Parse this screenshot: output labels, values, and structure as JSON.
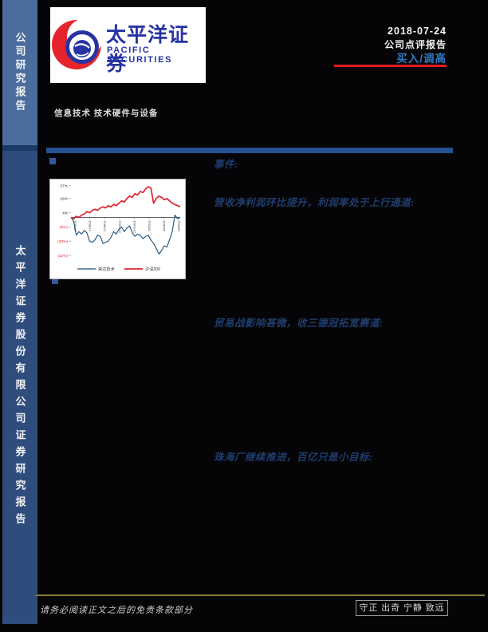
{
  "sidebar": {
    "top_label": "公司研究报告",
    "bottom_label": "太平洋证券股份有限公司证券研究报告",
    "top_bg": "#4a6d9d",
    "bottom_bg": "#2e4d7d"
  },
  "logo": {
    "cn": "太平洋证券",
    "en": "PACIFIC SECURITIES",
    "red": "#e5242c",
    "blue": "#2733a3"
  },
  "header": {
    "date": "2018-07-24",
    "report_type": "公司点评报告",
    "rating": "买入/调高",
    "rating_color": "#2e7bc4",
    "rule_color": "#e11b22"
  },
  "sector_line": "信息技术 技术硬件与设备",
  "headings": {
    "event": "事件:",
    "h1": "营收净利润环比提升，利润率处于上行通道:",
    "h2": "贸易战影响甚微，收三德冠拓宽赛道:",
    "h3": "珠海厂继续推进，百亿只是小目标:"
  },
  "chart_data": {
    "type": "line",
    "title": "",
    "xlabel": "",
    "ylabel": "",
    "ylim": [
      -38,
      32
    ],
    "grid": false,
    "legend_position": "bottom",
    "y_tick_labels": [
      "27%",
      "16%",
      "4%",
      "(8%)",
      "(20%)",
      "(32%)"
    ],
    "y_tick_values": [
      27,
      16,
      4,
      -8,
      -20,
      -32
    ],
    "x_tick_labels": [
      "17/4/13",
      "17/6/13",
      "17/8/13",
      "17/10/13",
      "17/12/13",
      "18/2/13",
      "18/4/13",
      "18/6/13"
    ],
    "negative_tick_color": "#e0242e",
    "positive_tick_color": "#222222",
    "series": [
      {
        "name": "崇达技术",
        "color": "#1f4e79",
        "values": [
          0,
          -3,
          -15,
          -12,
          -14,
          -11,
          -13,
          -20,
          -21,
          -19,
          -15,
          -16,
          -22,
          -21,
          -20,
          -17,
          -12,
          -14,
          -10,
          -8,
          -12,
          -9,
          -7,
          -13,
          -16,
          -14,
          -15,
          -18,
          -16,
          -15,
          -19,
          -22,
          -26,
          -31,
          -28,
          -24,
          -25,
          -19,
          -12,
          2,
          -1,
          0
        ]
      },
      {
        "name": "沪深300",
        "color": "#e0242e",
        "values": [
          0,
          -1,
          1,
          0,
          2,
          3,
          5,
          4,
          6,
          7,
          6,
          8,
          9,
          8,
          10,
          9,
          11,
          10,
          12,
          14,
          13,
          16,
          18,
          17,
          20,
          19,
          22,
          21,
          24,
          26,
          25,
          12,
          16,
          18,
          17,
          15,
          16,
          14,
          12,
          11,
          10,
          9
        ]
      }
    ]
  },
  "footer": {
    "disclaimer": "请务必阅读正文之后的免责条款部分",
    "motto": "守正 出奇 宁静 致远",
    "line_color": "#8b7b39"
  }
}
